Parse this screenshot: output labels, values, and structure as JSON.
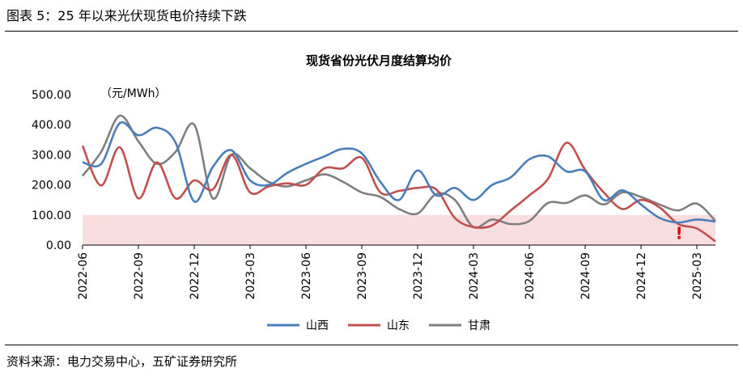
{
  "header": {
    "text": "图表 5：25 年以来光伏现货电价持续下跌"
  },
  "footer": {
    "text": "资料来源：电力交易中心，五矿证券研究所"
  },
  "chart_data": {
    "type": "line",
    "title": "现货省份光伏月度结算均价",
    "unit_label": "（元/MWh）",
    "ylim": [
      0,
      500
    ],
    "y_ticks": [
      "0.00",
      "100.00",
      "200.00",
      "300.00",
      "400.00",
      "500.00"
    ],
    "x_tick_labels": [
      "2022-06",
      "2022-09",
      "2022-12",
      "2023-03",
      "2023-06",
      "2023-09",
      "2023-12",
      "2024-03",
      "2024-06",
      "2024-09",
      "2024-12",
      "2025-03"
    ],
    "x": [
      "2022-06",
      "2022-07",
      "2022-08",
      "2022-09",
      "2022-10",
      "2022-11",
      "2022-12",
      "2023-01",
      "2023-02",
      "2023-03",
      "2023-04",
      "2023-05",
      "2023-06",
      "2023-07",
      "2023-08",
      "2023-09",
      "2023-10",
      "2023-11",
      "2023-12",
      "2024-01",
      "2024-02",
      "2024-03",
      "2024-04",
      "2024-05",
      "2024-06",
      "2024-07",
      "2024-08",
      "2024-09",
      "2024-10",
      "2024-11",
      "2024-12",
      "2025-01",
      "2025-02",
      "2025-03",
      "2025-04"
    ],
    "shaded_band": {
      "from": 0,
      "to": 100,
      "color": "#f8dede"
    },
    "annotation": {
      "text": "!",
      "x": "2025-02",
      "y": 50,
      "color": "#e00000"
    },
    "series": [
      {
        "name": "山西",
        "color": "#4a7ebb",
        "values": [
          275,
          270,
          405,
          365,
          390,
          340,
          145,
          260,
          315,
          215,
          200,
          240,
          270,
          295,
          320,
          305,
          210,
          150,
          248,
          165,
          190,
          150,
          200,
          225,
          285,
          295,
          245,
          245,
          150,
          182,
          135,
          90,
          75,
          85,
          78
        ]
      },
      {
        "name": "山东",
        "color": "#c0504d",
        "values": [
          330,
          198,
          325,
          155,
          275,
          155,
          215,
          185,
          300,
          175,
          195,
          205,
          200,
          255,
          255,
          290,
          175,
          180,
          190,
          185,
          90,
          60,
          65,
          115,
          165,
          220,
          340,
          250,
          175,
          120,
          150,
          125,
          70,
          55,
          12
        ]
      },
      {
        "name": "甘肃",
        "color": "#7f7f7f",
        "values": [
          230,
          310,
          430,
          345,
          270,
          310,
          400,
          155,
          300,
          255,
          210,
          195,
          215,
          235,
          210,
          175,
          160,
          120,
          105,
          170,
          150,
          60,
          85,
          70,
          80,
          140,
          140,
          165,
          135,
          175,
          160,
          135,
          115,
          138,
          80
        ]
      }
    ]
  }
}
